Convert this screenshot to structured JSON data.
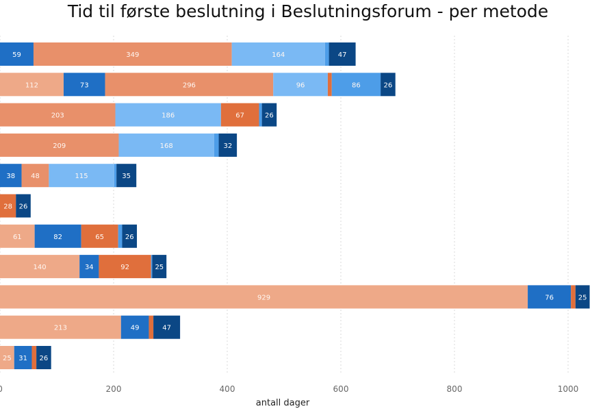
{
  "chart_data": {
    "type": "bar",
    "orientation": "horizontal",
    "stacked": true,
    "title": "Tid til første beslutning i Beslutningsforum - per metode",
    "xlabel": "antall dager",
    "ylabel": "",
    "xlim": [
      0,
      1060
    ],
    "xticks": [
      0,
      200,
      400,
      600,
      800,
      1000
    ],
    "xtick_labels": [
      "0",
      "200",
      "400",
      "600",
      "800",
      "1000"
    ],
    "grid": "vertical",
    "legend": "none",
    "rows": [
      {
        "segments": [
          {
            "value": 59,
            "color": "#1f6fc5",
            "label": "59"
          },
          {
            "value": 349,
            "color": "#e8906a",
            "label": "349"
          },
          {
            "value": 164,
            "color": "#7ab9f4",
            "label": "164"
          },
          {
            "value": 7,
            "color": "#4d9de8",
            "label": ""
          },
          {
            "value": 47,
            "color": "#0b4785",
            "label": "47"
          }
        ]
      },
      {
        "segments": [
          {
            "value": 112,
            "color": "#eea988",
            "label": "112"
          },
          {
            "value": 73,
            "color": "#1f6fc5",
            "label": "73"
          },
          {
            "value": 296,
            "color": "#e8906a",
            "label": "296"
          },
          {
            "value": 96,
            "color": "#7ab9f4",
            "label": "96"
          },
          {
            "value": 7,
            "color": "#e06f3c",
            "label": ""
          },
          {
            "value": 86,
            "color": "#4d9de8",
            "label": "86"
          },
          {
            "value": 26,
            "color": "#0b4785",
            "label": "26"
          }
        ]
      },
      {
        "segments": [
          {
            "value": 203,
            "color": "#e8906a",
            "label": "203"
          },
          {
            "value": 186,
            "color": "#7ab9f4",
            "label": "186"
          },
          {
            "value": 67,
            "color": "#e06f3c",
            "label": "67"
          },
          {
            "value": 5,
            "color": "#4d9de8",
            "label": ""
          },
          {
            "value": 26,
            "color": "#0b4785",
            "label": "26"
          }
        ]
      },
      {
        "segments": [
          {
            "value": 209,
            "color": "#e8906a",
            "label": "209"
          },
          {
            "value": 168,
            "color": "#7ab9f4",
            "label": "168"
          },
          {
            "value": 8,
            "color": "#4d9de8",
            "label": ""
          },
          {
            "value": 32,
            "color": "#0b4785",
            "label": "32"
          }
        ]
      },
      {
        "segments": [
          {
            "value": 38,
            "color": "#1f6fc5",
            "label": "38"
          },
          {
            "value": 48,
            "color": "#e8906a",
            "label": "48"
          },
          {
            "value": 115,
            "color": "#7ab9f4",
            "label": "115"
          },
          {
            "value": 4,
            "color": "#4d9de8",
            "label": ""
          },
          {
            "value": 35,
            "color": "#0b4785",
            "label": "35"
          }
        ]
      },
      {
        "segments": [
          {
            "value": 28,
            "color": "#e06f3c",
            "label": "28"
          },
          {
            "value": 26,
            "color": "#0b4785",
            "label": "26"
          }
        ]
      },
      {
        "segments": [
          {
            "value": 61,
            "color": "#eea988",
            "label": "61"
          },
          {
            "value": 82,
            "color": "#1f6fc5",
            "label": "82"
          },
          {
            "value": 65,
            "color": "#e06f3c",
            "label": "65"
          },
          {
            "value": 7,
            "color": "#4d9de8",
            "label": ""
          },
          {
            "value": 26,
            "color": "#0b4785",
            "label": "26"
          }
        ]
      },
      {
        "segments": [
          {
            "value": 140,
            "color": "#eea988",
            "label": "140"
          },
          {
            "value": 34,
            "color": "#1f6fc5",
            "label": "34"
          },
          {
            "value": 92,
            "color": "#e06f3c",
            "label": "92"
          },
          {
            "value": 2,
            "color": "#4d9de8",
            "label": ""
          },
          {
            "value": 25,
            "color": "#0b4785",
            "label": "25"
          }
        ]
      },
      {
        "segments": [
          {
            "value": 929,
            "color": "#eea988",
            "label": "929"
          },
          {
            "value": 76,
            "color": "#1f6fc5",
            "label": "76"
          },
          {
            "value": 8,
            "color": "#e06f3c",
            "label": ""
          },
          {
            "value": 25,
            "color": "#0b4785",
            "label": "25"
          }
        ]
      },
      {
        "segments": [
          {
            "value": 213,
            "color": "#eea988",
            "label": "213"
          },
          {
            "value": 49,
            "color": "#1f6fc5",
            "label": "49"
          },
          {
            "value": 8,
            "color": "#e06f3c",
            "label": ""
          },
          {
            "value": 47,
            "color": "#0b4785",
            "label": "47"
          }
        ]
      },
      {
        "segments": [
          {
            "value": 25,
            "color": "#eea988",
            "label": "25"
          },
          {
            "value": 31,
            "color": "#1f6fc5",
            "label": "31"
          },
          {
            "value": 8,
            "color": "#e06f3c",
            "label": ""
          },
          {
            "value": 26,
            "color": "#0b4785",
            "label": "26"
          }
        ]
      }
    ]
  }
}
